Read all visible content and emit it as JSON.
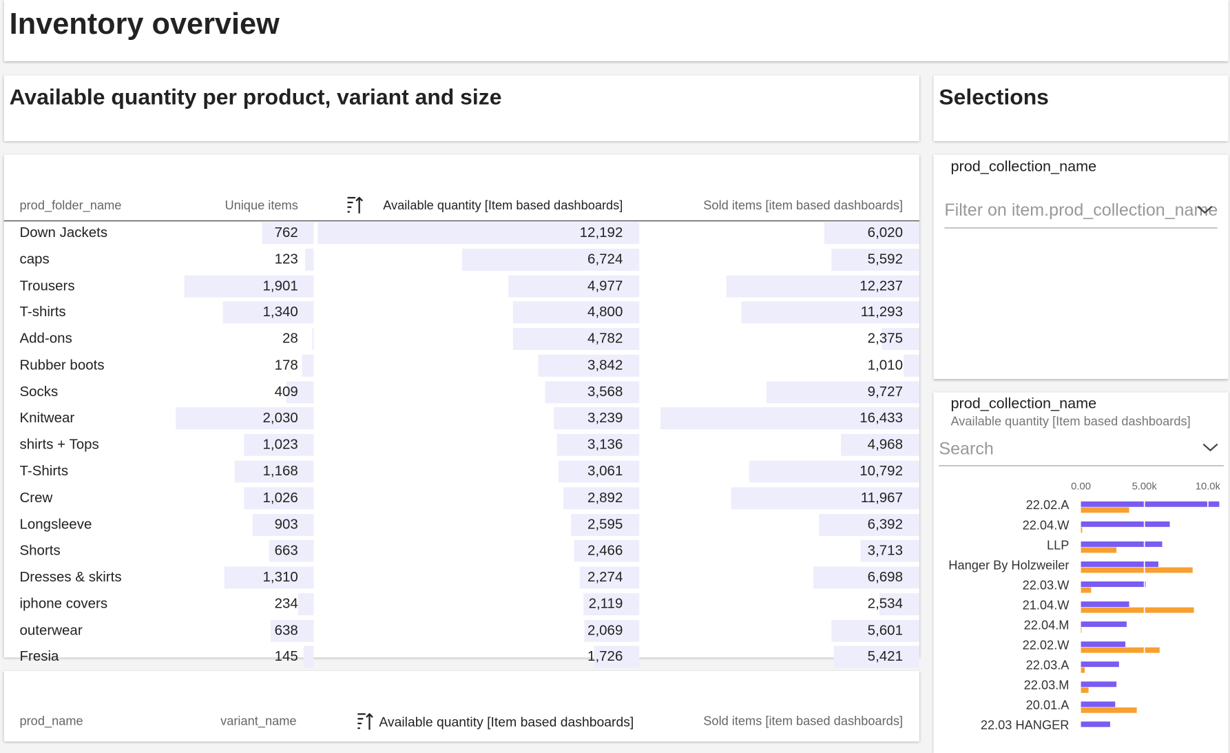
{
  "header": {
    "title": "Inventory overview"
  },
  "table_panel": {
    "title": "Available quantity per product, variant and size"
  },
  "table": {
    "columns": [
      "prod_folder_name",
      "Unique items",
      "Available quantity [Item based dashboards]",
      "Sold items [item based dashboards]"
    ],
    "rows": [
      [
        "Down Jackets",
        "762",
        "12,192",
        "6,020"
      ],
      [
        "caps",
        "123",
        "6,724",
        "5,592"
      ],
      [
        "Trousers",
        "1,901",
        "4,977",
        "12,237"
      ],
      [
        "T-shirts",
        "1,340",
        "4,800",
        "11,293"
      ],
      [
        "Add-ons",
        "28",
        "4,782",
        "2,375"
      ],
      [
        "Rubber boots",
        "178",
        "3,842",
        "1,010"
      ],
      [
        "Socks",
        "409",
        "3,568",
        "9,727"
      ],
      [
        "Knitwear",
        "2,030",
        "3,239",
        "16,433"
      ],
      [
        "shirts + Tops",
        "1,023",
        "3,136",
        "4,968"
      ],
      [
        "T-Shirts",
        "1,168",
        "3,061",
        "10,792"
      ],
      [
        "Crew",
        "1,026",
        "2,892",
        "11,967"
      ],
      [
        "Longsleeve",
        "903",
        "2,595",
        "6,392"
      ],
      [
        "Shorts",
        "663",
        "2,466",
        "3,713"
      ],
      [
        "Dresses & skirts",
        "1,310",
        "2,274",
        "6,698"
      ],
      [
        "iphone covers",
        "234",
        "2,119",
        "2,534"
      ],
      [
        "outerwear",
        "638",
        "2,069",
        "5,601"
      ],
      [
        "Fresia",
        "145",
        "1,726",
        "5,421"
      ]
    ]
  },
  "table2": {
    "columns": [
      "prod_name",
      "variant_name",
      "Available quantity [Item based dashboards]",
      "Sold items [item based dashboards]"
    ]
  },
  "selections": {
    "title": "Selections",
    "filter": {
      "label": "prod_collection_name",
      "placeholder": "Filter on item.prod_collection_name"
    }
  },
  "chart_search": {
    "placeholder": "Search"
  },
  "chart_data": {
    "type": "bar",
    "orientation": "horizontal",
    "title": "prod_collection_name",
    "subtitle": "Available quantity [Item based dashboards]",
    "categories": [
      "22.02.A",
      "22.04.W",
      "LLP",
      "Hanger By Holzweiler",
      "22.03.W",
      "21.04.W",
      "22.04.M",
      "22.02.W",
      "22.03.A",
      "22.03.M",
      "20.01.A",
      "22.03 HANGER"
    ],
    "series": [
      {
        "color": "#7b5cf0",
        "values": [
          10900,
          7000,
          6400,
          6100,
          5100,
          3800,
          3600,
          3500,
          3000,
          2800,
          2700,
          2300
        ]
      },
      {
        "color": "#f7a030",
        "values": [
          3800,
          100,
          2800,
          8800,
          800,
          8900,
          50,
          6200,
          300,
          600,
          4400,
          null
        ]
      }
    ],
    "xlim": [
      0,
      11000
    ],
    "xticks": [
      {
        "value": 0,
        "label": "0.00"
      },
      {
        "value": 5000,
        "label": "5.00k"
      },
      {
        "value": 10000,
        "label": "10.0k"
      }
    ],
    "grid": true
  }
}
